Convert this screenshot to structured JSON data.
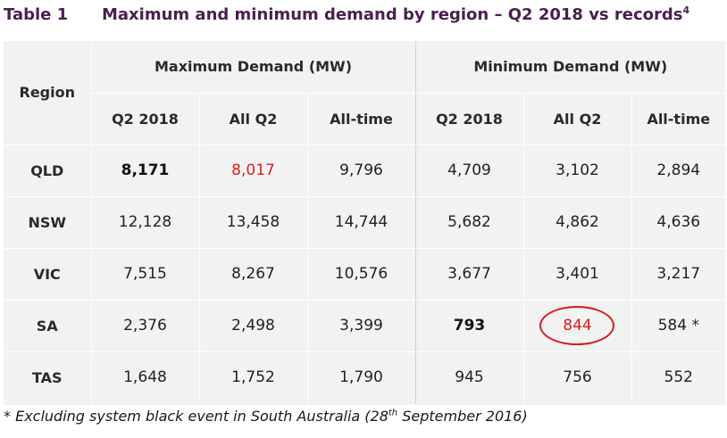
{
  "title": {
    "number": "Table 1",
    "text": "Maximum and minimum demand by region – Q2 2018 vs records",
    "sup": "4"
  },
  "header": {
    "region": "Region",
    "max_group": "Maximum Demand (MW)",
    "min_group": "Minimum Demand (MW)",
    "cols": [
      "Q2 2018",
      "All Q2",
      "All-time",
      "Q2 2018",
      "All Q2",
      "All-time"
    ]
  },
  "rows": [
    {
      "region": "QLD",
      "values": [
        "8,171",
        "8,017",
        "9,796",
        "4,709",
        "3,102",
        "2,894"
      ]
    },
    {
      "region": "NSW",
      "values": [
        "12,128",
        "13,458",
        "14,744",
        "5,682",
        "4,862",
        "4,636"
      ]
    },
    {
      "region": "VIC",
      "values": [
        "7,515",
        "8,267",
        "10,576",
        "3,677",
        "3,401",
        "3,217"
      ]
    },
    {
      "region": "SA",
      "values": [
        "2,376",
        "2,498",
        "3,399",
        "793",
        "844",
        "584 *"
      ]
    },
    {
      "region": "TAS",
      "values": [
        "1,648",
        "1,752",
        "1,790",
        "945",
        "756",
        "552"
      ]
    }
  ],
  "footnote": {
    "pre": "* Excluding system black event in South Australia (28",
    "sup": "th",
    "post": " September 2016)"
  },
  "colors": {
    "title": "#4a1f4f",
    "highlight": "#e01b1b",
    "table_bg": "#f2f2f2"
  }
}
